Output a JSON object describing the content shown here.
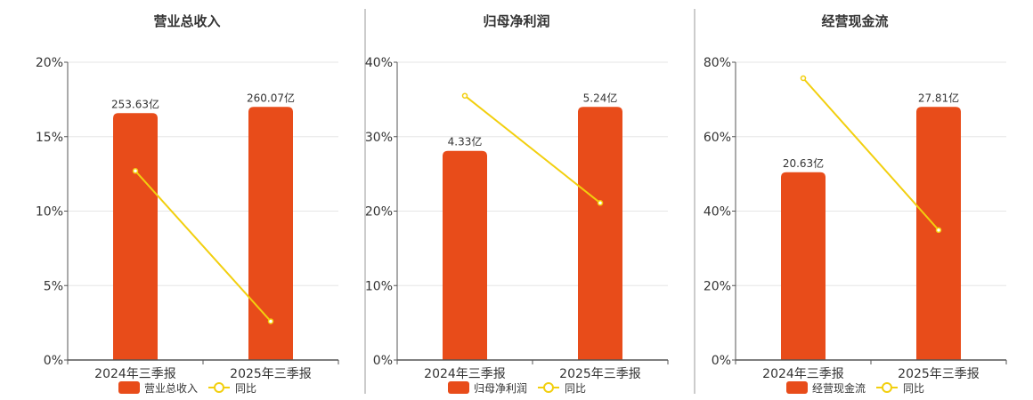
{
  "colors": {
    "bar": "#e84c1a",
    "line": "#f2cf0e",
    "axis": "#555555",
    "grid": "#e6e6e6",
    "text": "#333333",
    "divider": "#999999"
  },
  "chart_data": [
    {
      "type": "bar+line",
      "title": "营业总收入",
      "categories": [
        "2024年三季报",
        "2025年三季报"
      ],
      "bar_series": {
        "name": "营业总收入",
        "values": [
          253.63,
          260.07
        ],
        "labels": [
          "253.63亿",
          "260.07亿"
        ]
      },
      "line_series": {
        "name": "同比",
        "values": [
          12.7,
          2.6
        ]
      },
      "y_ticks": [
        "0%",
        "5%",
        "10%",
        "15%",
        "20%"
      ],
      "ylim": [
        0,
        20
      ],
      "grid": true,
      "legend": "bottom"
    },
    {
      "type": "bar+line",
      "title": "归母净利润",
      "categories": [
        "2024年三季报",
        "2025年三季报"
      ],
      "bar_series": {
        "name": "归母净利润",
        "values": [
          4.33,
          5.24
        ],
        "labels": [
          "4.33亿",
          "5.24亿"
        ]
      },
      "line_series": {
        "name": "同比",
        "values": [
          35.5,
          21.1
        ]
      },
      "y_ticks": [
        "0%",
        "10%",
        "20%",
        "30%",
        "40%"
      ],
      "ylim": [
        0,
        40
      ],
      "grid": true,
      "legend": "bottom"
    },
    {
      "type": "bar+line",
      "title": "经营现金流",
      "categories": [
        "2024年三季报",
        "2025年三季报"
      ],
      "bar_series": {
        "name": "经营现金流",
        "values": [
          20.63,
          27.81
        ],
        "labels": [
          "20.63亿",
          "27.81亿"
        ]
      },
      "line_series": {
        "name": "同比",
        "values": [
          75.7,
          34.9
        ]
      },
      "y_ticks": [
        "0%",
        "20%",
        "40%",
        "60%",
        "80%"
      ],
      "ylim": [
        0,
        80
      ],
      "grid": true,
      "legend": "bottom"
    }
  ]
}
